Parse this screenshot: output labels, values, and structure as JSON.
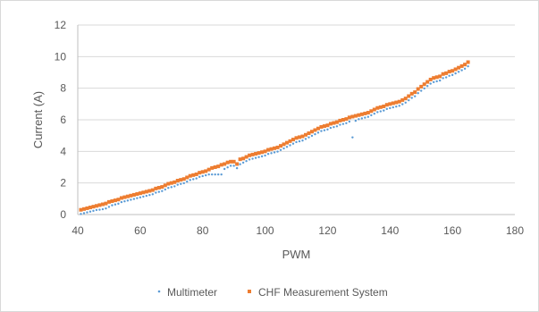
{
  "chart_data": {
    "type": "scatter",
    "xlabel": "PWM",
    "ylabel": "Current (A)",
    "xlim": [
      40,
      180
    ],
    "ylim": [
      0,
      12
    ],
    "xticks": [
      40,
      60,
      80,
      100,
      120,
      140,
      160,
      180
    ],
    "yticks": [
      0,
      2,
      4,
      6,
      8,
      10,
      12
    ],
    "grid": "horizontal",
    "legend": "bottom",
    "series": [
      {
        "name": "Multimeter",
        "color": "#5b9bd5",
        "marker": "small-dot",
        "x": [
          41,
          42,
          43,
          44,
          45,
          46,
          47,
          48,
          49,
          50,
          51,
          52,
          53,
          54,
          55,
          56,
          57,
          58,
          59,
          60,
          61,
          62,
          63,
          64,
          65,
          66,
          67,
          68,
          69,
          70,
          71,
          72,
          73,
          74,
          75,
          76,
          77,
          78,
          79,
          80,
          81,
          82,
          83,
          84,
          85,
          86,
          87,
          88,
          89,
          90,
          91,
          92,
          93,
          94,
          95,
          96,
          97,
          98,
          99,
          100,
          101,
          102,
          103,
          104,
          105,
          106,
          107,
          108,
          109,
          110,
          111,
          112,
          113,
          114,
          115,
          116,
          117,
          118,
          119,
          120,
          121,
          122,
          123,
          124,
          125,
          126,
          127,
          128,
          129,
          130,
          131,
          132,
          133,
          134,
          135,
          136,
          137,
          138,
          139,
          140,
          141,
          142,
          143,
          144,
          145,
          146,
          147,
          148,
          149,
          150,
          151,
          152,
          153,
          154,
          155,
          156,
          157,
          158,
          159,
          160,
          161,
          162,
          163,
          164,
          165
        ],
        "y": [
          0.15,
          0.2,
          0.25,
          0.3,
          0.35,
          0.4,
          0.42,
          0.45,
          0.5,
          0.6,
          0.7,
          0.75,
          0.8,
          0.9,
          0.95,
          1.0,
          1.05,
          1.1,
          1.15,
          1.2,
          1.25,
          1.3,
          1.35,
          1.4,
          1.5,
          1.55,
          1.6,
          1.7,
          1.8,
          1.85,
          1.9,
          2.0,
          2.05,
          2.1,
          2.2,
          2.3,
          2.35,
          2.4,
          2.5,
          2.55,
          2.6,
          2.65,
          2.65,
          2.65,
          2.65,
          2.65,
          3.0,
          3.1,
          3.2,
          3.2,
          3.05,
          3.3,
          3.4,
          3.5,
          3.6,
          3.65,
          3.7,
          3.75,
          3.8,
          3.85,
          3.95,
          4.0,
          4.05,
          4.1,
          4.2,
          4.3,
          4.4,
          4.5,
          4.6,
          4.7,
          4.75,
          4.8,
          4.9,
          5.0,
          5.1,
          5.2,
          5.3,
          5.4,
          5.45,
          5.5,
          5.6,
          5.65,
          5.7,
          5.8,
          5.85,
          5.9,
          6.0,
          5.0,
          6.05,
          6.15,
          6.2,
          6.25,
          6.3,
          6.4,
          6.5,
          6.6,
          6.65,
          6.7,
          6.8,
          6.85,
          6.9,
          6.95,
          7.0,
          7.1,
          7.2,
          7.35,
          7.5,
          7.6,
          7.8,
          7.95,
          8.1,
          8.25,
          8.4,
          8.5,
          8.55,
          8.6,
          8.75,
          8.8,
          8.9,
          8.95,
          9.05,
          9.15,
          9.25,
          9.35,
          9.5
        ]
      },
      {
        "name": "CHF Measurement System",
        "color": "#ed7d31",
        "marker": "square",
        "x": [
          41,
          42,
          43,
          44,
          45,
          46,
          47,
          48,
          49,
          50,
          51,
          52,
          53,
          54,
          55,
          56,
          57,
          58,
          59,
          60,
          61,
          62,
          63,
          64,
          65,
          66,
          67,
          68,
          69,
          70,
          71,
          72,
          73,
          74,
          75,
          76,
          77,
          78,
          79,
          80,
          81,
          82,
          83,
          84,
          85,
          86,
          87,
          88,
          89,
          90,
          91,
          92,
          93,
          94,
          95,
          96,
          97,
          98,
          99,
          100,
          101,
          102,
          103,
          104,
          105,
          106,
          107,
          108,
          109,
          110,
          111,
          112,
          113,
          114,
          115,
          116,
          117,
          118,
          119,
          120,
          121,
          122,
          123,
          124,
          125,
          126,
          127,
          128,
          129,
          130,
          131,
          132,
          133,
          134,
          135,
          136,
          137,
          138,
          139,
          140,
          141,
          142,
          143,
          144,
          145,
          146,
          147,
          148,
          149,
          150,
          151,
          152,
          153,
          154,
          155,
          156,
          157,
          158,
          159,
          160,
          161,
          162,
          163,
          164,
          165
        ],
        "y": [
          0.3,
          0.35,
          0.4,
          0.45,
          0.5,
          0.55,
          0.6,
          0.65,
          0.7,
          0.8,
          0.85,
          0.9,
          0.95,
          1.05,
          1.1,
          1.15,
          1.2,
          1.25,
          1.3,
          1.35,
          1.4,
          1.45,
          1.5,
          1.55,
          1.65,
          1.7,
          1.75,
          1.85,
          1.95,
          2.0,
          2.05,
          2.15,
          2.2,
          2.25,
          2.35,
          2.45,
          2.5,
          2.55,
          2.65,
          2.7,
          2.75,
          2.85,
          2.95,
          3.0,
          3.05,
          3.15,
          3.2,
          3.3,
          3.35,
          3.35,
          3.2,
          3.5,
          3.55,
          3.65,
          3.75,
          3.8,
          3.85,
          3.9,
          3.95,
          4.0,
          4.1,
          4.15,
          4.2,
          4.25,
          4.35,
          4.45,
          4.55,
          4.65,
          4.75,
          4.85,
          4.9,
          4.95,
          5.05,
          5.15,
          5.25,
          5.35,
          5.45,
          5.55,
          5.6,
          5.65,
          5.75,
          5.8,
          5.85,
          5.95,
          6.0,
          6.05,
          6.15,
          6.2,
          6.25,
          6.3,
          6.35,
          6.4,
          6.45,
          6.55,
          6.65,
          6.75,
          6.8,
          6.85,
          6.95,
          7.0,
          7.05,
          7.1,
          7.15,
          7.25,
          7.35,
          7.5,
          7.65,
          7.75,
          7.95,
          8.1,
          8.25,
          8.4,
          8.55,
          8.65,
          8.7,
          8.75,
          8.9,
          8.95,
          9.05,
          9.1,
          9.2,
          9.3,
          9.4,
          9.5,
          9.65
        ]
      }
    ]
  }
}
